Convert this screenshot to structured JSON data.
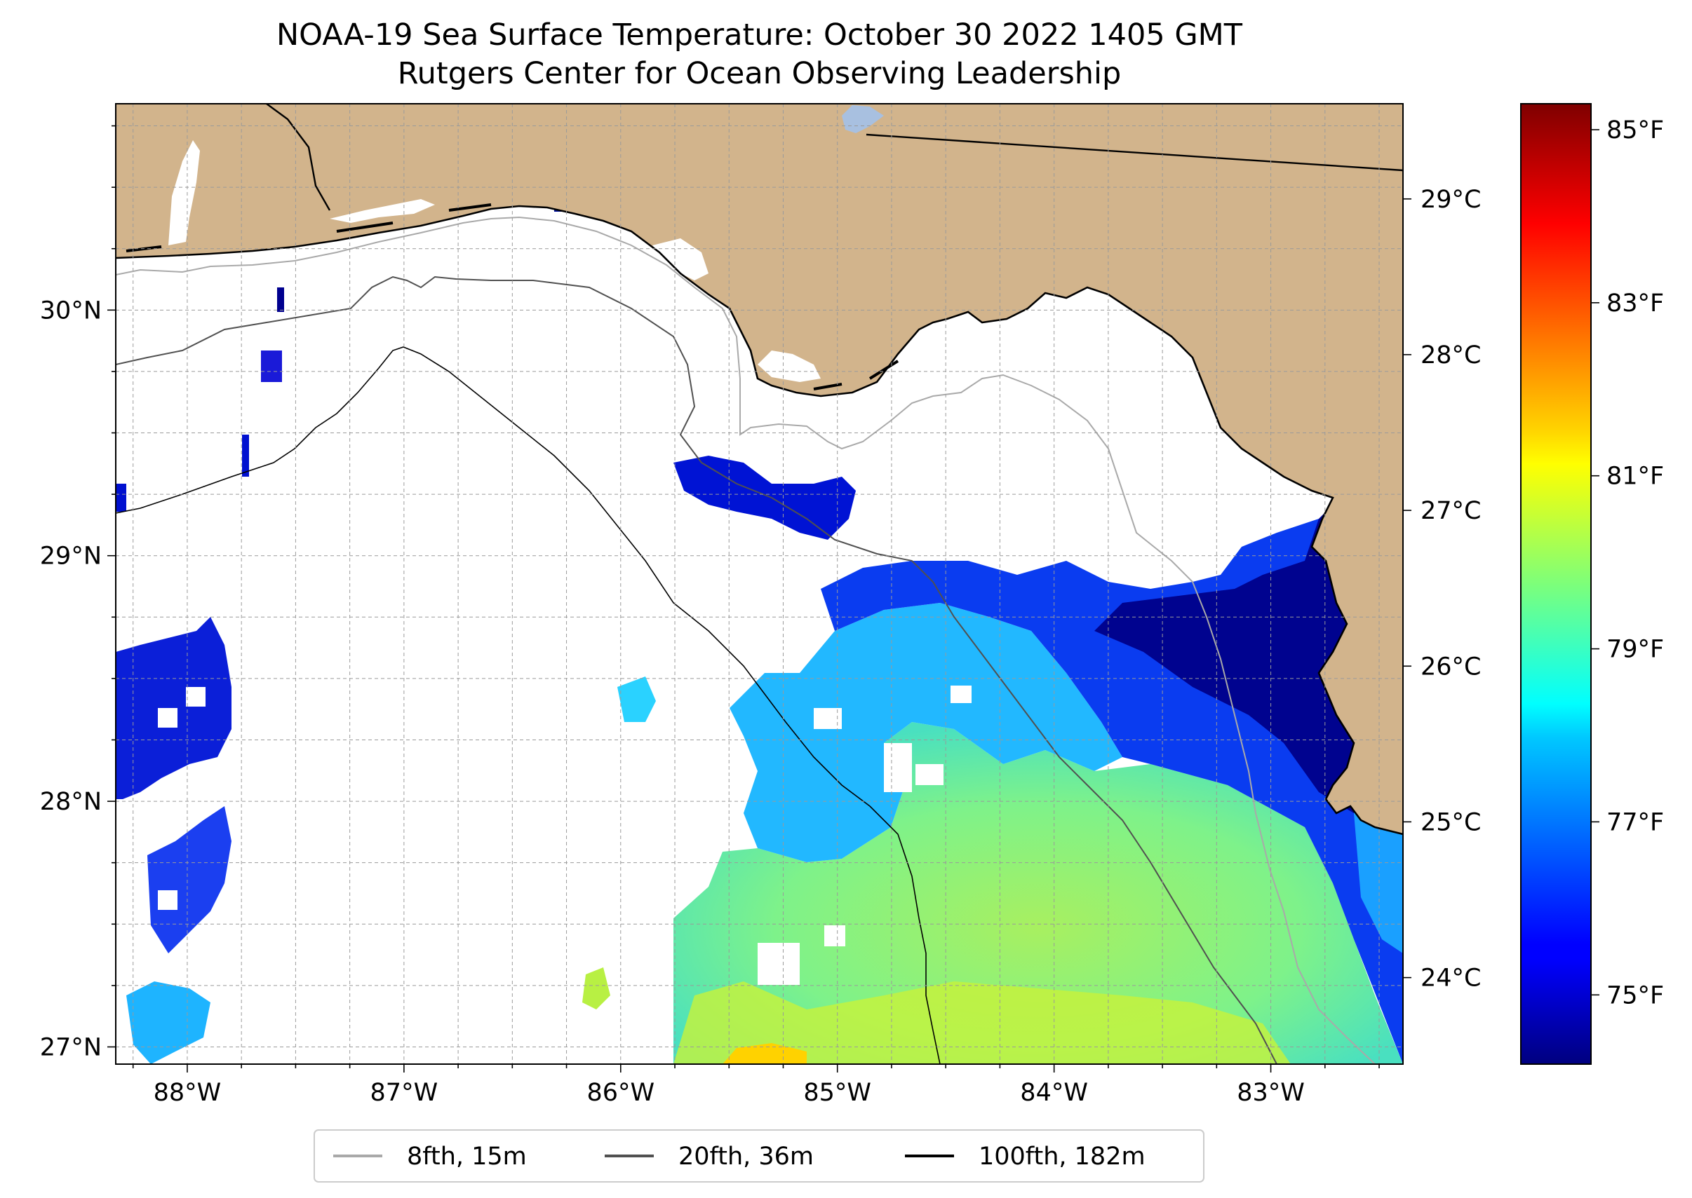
{
  "title": "NOAA-19 Sea Surface Temperature: October 30 2022 1405 GMT",
  "subtitle": "Rutgers Center for Ocean Observing Leadership",
  "map": {
    "lon_range": [
      -88.33,
      -82.39
    ],
    "lat_range": [
      26.93,
      30.84
    ],
    "lon_ticks": [
      {
        "value": -88,
        "label": "88°W"
      },
      {
        "value": -87,
        "label": "87°W"
      },
      {
        "value": -86,
        "label": "86°W"
      },
      {
        "value": -85,
        "label": "85°W"
      },
      {
        "value": -84,
        "label": "84°W"
      },
      {
        "value": -83,
        "label": "83°W"
      }
    ],
    "lat_ticks": [
      {
        "value": 27,
        "label": "27°N"
      },
      {
        "value": 28,
        "label": "28°N"
      },
      {
        "value": 29,
        "label": "29°N"
      },
      {
        "value": 30,
        "label": "30°N"
      }
    ],
    "grid": true,
    "land_color": "#d2b48c",
    "no_data_color": "#ffffff"
  },
  "colorbar": {
    "colormap": "jet",
    "range_f": [
      74.2,
      85.3
    ],
    "fahrenheit_ticks": [
      {
        "value": 75,
        "label": "75°F"
      },
      {
        "value": 77,
        "label": "77°F"
      },
      {
        "value": 79,
        "label": "79°F"
      },
      {
        "value": 81,
        "label": "81°F"
      },
      {
        "value": 83,
        "label": "83°F"
      },
      {
        "value": 85,
        "label": "85°F"
      }
    ],
    "celsius_ticks": [
      {
        "value": 24,
        "label": "24°C"
      },
      {
        "value": 25,
        "label": "25°C"
      },
      {
        "value": 26,
        "label": "26°C"
      },
      {
        "value": 27,
        "label": "27°C"
      },
      {
        "value": 28,
        "label": "28°C"
      },
      {
        "value": 29,
        "label": "29°C"
      }
    ]
  },
  "legend": {
    "placement": "bottom-center",
    "items": [
      {
        "label": "8fth, 15m",
        "color": "#a9a9a9"
      },
      {
        "label": "20fth, 36m",
        "color": "#505050"
      },
      {
        "label": "100fth, 182m",
        "color": "#000000"
      }
    ]
  }
}
